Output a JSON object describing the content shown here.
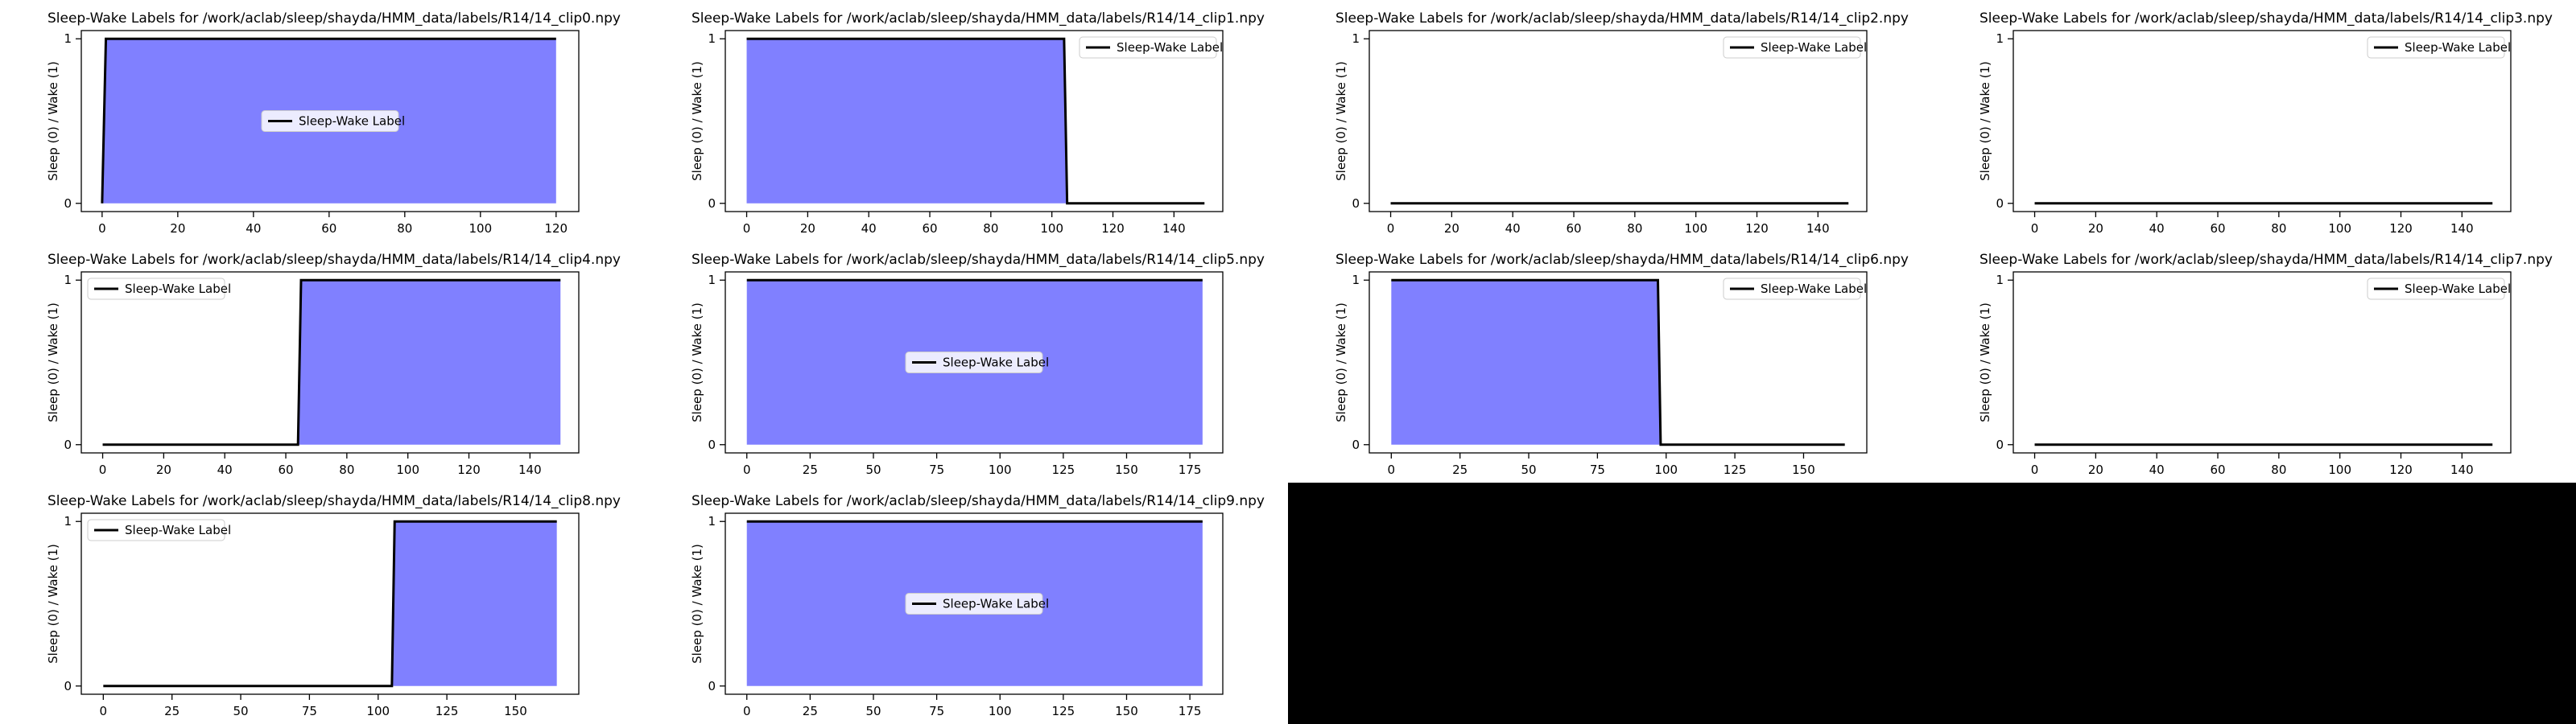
{
  "colors": {
    "fill": "#8080ff",
    "line": "#000000",
    "frame": "#000000",
    "background": "#ffffff",
    "empty_area": "#000000"
  },
  "chart_data": [
    {
      "type": "area",
      "title": "Sleep-Wake Labels for /work/aclab/sleep/shayda/HMM_data/labels/R14/14_clip0.npy",
      "ylabel": "Sleep (0) / Wake (1)",
      "xlim": [
        -5.5,
        126
      ],
      "ylim": [
        -0.05,
        1.05
      ],
      "xticks": [
        0,
        20,
        40,
        60,
        80,
        100,
        120
      ],
      "yticks": [
        0,
        1
      ],
      "series": [
        {
          "name": "Sleep-Wake Label",
          "x": [
            0,
            1,
            120
          ],
          "y": [
            0,
            1,
            1
          ]
        }
      ],
      "legend": "center"
    },
    {
      "type": "area",
      "title": "Sleep-Wake Labels for /work/aclab/sleep/shayda/HMM_data/labels/R14/14_clip1.npy",
      "ylabel": "Sleep (0) / Wake (1)",
      "xlim": [
        -7,
        156
      ],
      "ylim": [
        -0.05,
        1.05
      ],
      "xticks": [
        0,
        20,
        40,
        60,
        80,
        100,
        120,
        140
      ],
      "yticks": [
        0,
        1
      ],
      "series": [
        {
          "name": "Sleep-Wake Label",
          "x": [
            0,
            104,
            105,
            150
          ],
          "y": [
            1,
            1,
            0,
            0
          ]
        }
      ],
      "legend": "upper right"
    },
    {
      "type": "area",
      "title": "Sleep-Wake Labels for /work/aclab/sleep/shayda/HMM_data/labels/R14/14_clip2.npy",
      "ylabel": "Sleep (0) / Wake (1)",
      "xlim": [
        -7,
        156
      ],
      "ylim": [
        -0.05,
        1.05
      ],
      "xticks": [
        0,
        20,
        40,
        60,
        80,
        100,
        120,
        140
      ],
      "yticks": [
        0,
        1
      ],
      "series": [
        {
          "name": "Sleep-Wake Label",
          "x": [
            0,
            150
          ],
          "y": [
            0,
            0
          ]
        }
      ],
      "legend": "upper right"
    },
    {
      "type": "area",
      "title": "Sleep-Wake Labels for /work/aclab/sleep/shayda/HMM_data/labels/R14/14_clip3.npy",
      "ylabel": "Sleep (0) / Wake (1)",
      "xlim": [
        -7,
        156
      ],
      "ylim": [
        -0.05,
        1.05
      ],
      "xticks": [
        0,
        20,
        40,
        60,
        80,
        100,
        120,
        140
      ],
      "yticks": [
        0,
        1
      ],
      "series": [
        {
          "name": "Sleep-Wake Label",
          "x": [
            0,
            150
          ],
          "y": [
            0,
            0
          ]
        }
      ],
      "legend": "upper right"
    },
    {
      "type": "area",
      "title": "Sleep-Wake Labels for /work/aclab/sleep/shayda/HMM_data/labels/R14/14_clip4.npy",
      "ylabel": "Sleep (0) / Wake (1)",
      "xlim": [
        -7,
        156
      ],
      "ylim": [
        -0.05,
        1.05
      ],
      "xticks": [
        0,
        20,
        40,
        60,
        80,
        100,
        120,
        140
      ],
      "yticks": [
        0,
        1
      ],
      "series": [
        {
          "name": "Sleep-Wake Label",
          "x": [
            0,
            64,
            65,
            150
          ],
          "y": [
            0,
            0,
            1,
            1
          ]
        }
      ],
      "legend": "upper left"
    },
    {
      "type": "area",
      "title": "Sleep-Wake Labels for /work/aclab/sleep/shayda/HMM_data/labels/R14/14_clip5.npy",
      "ylabel": "Sleep (0) / Wake (1)",
      "xlim": [
        -8.5,
        188
      ],
      "ylim": [
        -0.05,
        1.05
      ],
      "xticks": [
        0,
        25,
        50,
        75,
        100,
        125,
        150,
        175
      ],
      "yticks": [
        0,
        1
      ],
      "series": [
        {
          "name": "Sleep-Wake Label",
          "x": [
            0,
            180
          ],
          "y": [
            1,
            1
          ]
        }
      ],
      "legend": "center"
    },
    {
      "type": "area",
      "title": "Sleep-Wake Labels for /work/aclab/sleep/shayda/HMM_data/labels/R14/14_clip6.npy",
      "ylabel": "Sleep (0) / Wake (1)",
      "xlim": [
        -8,
        173
      ],
      "ylim": [
        -0.05,
        1.05
      ],
      "xticks": [
        0,
        25,
        50,
        75,
        100,
        125,
        150
      ],
      "yticks": [
        0,
        1
      ],
      "series": [
        {
          "name": "Sleep-Wake Label",
          "x": [
            0,
            97,
            98,
            165
          ],
          "y": [
            1,
            1,
            0,
            0
          ]
        }
      ],
      "legend": "upper right"
    },
    {
      "type": "area",
      "title": "Sleep-Wake Labels for /work/aclab/sleep/shayda/HMM_data/labels/R14/14_clip7.npy",
      "ylabel": "Sleep (0) / Wake (1)",
      "xlim": [
        -7,
        156
      ],
      "ylim": [
        -0.05,
        1.05
      ],
      "xticks": [
        0,
        20,
        40,
        60,
        80,
        100,
        120,
        140
      ],
      "yticks": [
        0,
        1
      ],
      "series": [
        {
          "name": "Sleep-Wake Label",
          "x": [
            0,
            150
          ],
          "y": [
            0,
            0
          ]
        }
      ],
      "legend": "upper right"
    },
    {
      "type": "area",
      "title": "Sleep-Wake Labels for /work/aclab/sleep/shayda/HMM_data/labels/R14/14_clip8.npy",
      "ylabel": "Sleep (0) / Wake (1)",
      "xlim": [
        -8,
        173
      ],
      "ylim": [
        -0.05,
        1.05
      ],
      "xticks": [
        0,
        25,
        50,
        75,
        100,
        125,
        150
      ],
      "yticks": [
        0,
        1
      ],
      "series": [
        {
          "name": "Sleep-Wake Label",
          "x": [
            0,
            105,
            106,
            165
          ],
          "y": [
            0,
            0,
            1,
            1
          ]
        }
      ],
      "legend": "upper left"
    },
    {
      "type": "area",
      "title": "Sleep-Wake Labels for /work/aclab/sleep/shayda/HMM_data/labels/R14/14_clip9.npy",
      "ylabel": "Sleep (0) / Wake (1)",
      "xlim": [
        -8.5,
        188
      ],
      "ylim": [
        -0.05,
        1.05
      ],
      "xticks": [
        0,
        25,
        50,
        75,
        100,
        125,
        150,
        175
      ],
      "yticks": [
        0,
        1
      ],
      "series": [
        {
          "name": "Sleep-Wake Label",
          "x": [
            0,
            180
          ],
          "y": [
            1,
            1
          ]
        }
      ],
      "legend": "center"
    }
  ]
}
